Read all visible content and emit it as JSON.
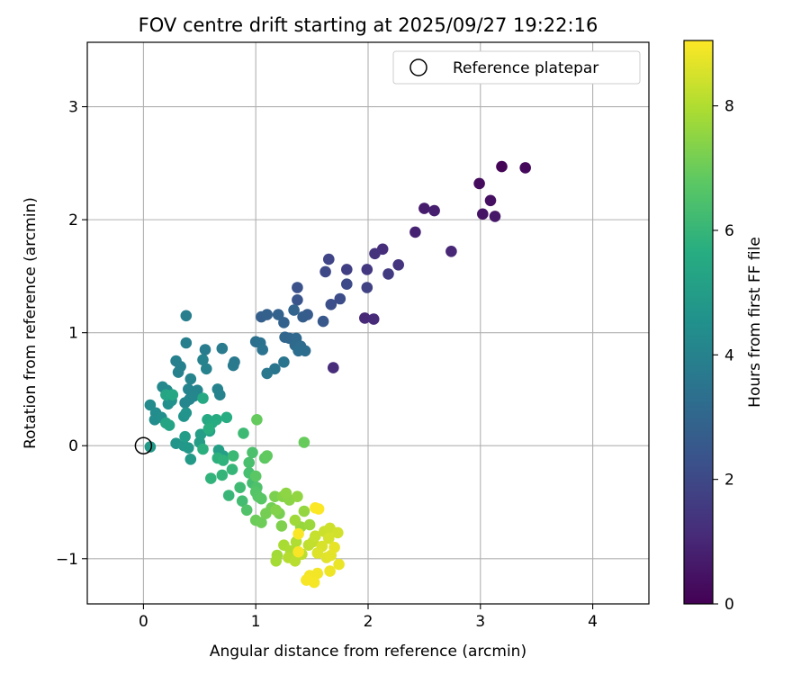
{
  "chart_data": {
    "type": "scatter",
    "title": "FOV centre drift starting at 2025/09/27 19:22:16",
    "xlabel": "Angular distance from reference (arcmin)",
    "ylabel": "Rotation from reference (arcmin)",
    "xlim": [
      -0.5,
      4.5
    ],
    "ylim": [
      -1.4,
      3.57
    ],
    "xticks": [
      0,
      1,
      2,
      3,
      4
    ],
    "xtick_labels": [
      "0",
      "1",
      "2",
      "3",
      "4"
    ],
    "yticks": [
      -1,
      0,
      1,
      2,
      3
    ],
    "ytick_labels": [
      "−1",
      "0",
      "1",
      "2",
      "3"
    ],
    "grid": true,
    "legend": {
      "label": "Reference platepar",
      "location": "top-right"
    },
    "reference_point": {
      "x": 0,
      "y": 0
    },
    "colorbar": {
      "label": "Hours from first FF file",
      "range": [
        0,
        9.05
      ],
      "ticks": [
        0,
        2,
        4,
        6,
        8
      ],
      "tick_labels": [
        "0",
        "2",
        "4",
        "6",
        "8"
      ],
      "colormap": "viridis"
    },
    "series": [
      {
        "name": "FOV centre",
        "points": [
          [
            3.19,
            2.47,
            0.1
          ],
          [
            3.4,
            2.46,
            0.2
          ],
          [
            2.99,
            2.32,
            0.3
          ],
          [
            3.09,
            2.17,
            0.4
          ],
          [
            3.02,
            2.05,
            0.5
          ],
          [
            3.13,
            2.03,
            0.6
          ],
          [
            2.5,
            2.1,
            0.7
          ],
          [
            2.59,
            2.08,
            0.8
          ],
          [
            2.42,
            1.89,
            0.9
          ],
          [
            2.74,
            1.72,
            1.0
          ],
          [
            1.97,
            1.13,
            1.05
          ],
          [
            2.05,
            1.12,
            1.1
          ],
          [
            1.69,
            0.69,
            1.15
          ],
          [
            2.13,
            1.74,
            1.2
          ],
          [
            2.06,
            1.7,
            1.3
          ],
          [
            2.27,
            1.6,
            1.4
          ],
          [
            1.99,
            1.56,
            1.5
          ],
          [
            2.18,
            1.52,
            1.6
          ],
          [
            1.81,
            1.56,
            1.7
          ],
          [
            1.99,
            1.4,
            1.8
          ],
          [
            1.65,
            1.65,
            1.9
          ],
          [
            1.62,
            1.54,
            2.0
          ],
          [
            1.81,
            1.43,
            2.1
          ],
          [
            1.75,
            1.3,
            2.15
          ],
          [
            1.67,
            1.25,
            2.2
          ],
          [
            1.37,
            1.4,
            2.3
          ],
          [
            1.37,
            1.29,
            2.4
          ],
          [
            1.6,
            1.1,
            2.5
          ],
          [
            1.46,
            1.16,
            2.6
          ],
          [
            1.42,
            1.14,
            2.7
          ],
          [
            1.05,
            1.14,
            2.75
          ],
          [
            1.1,
            1.16,
            2.8
          ],
          [
            1.2,
            1.16,
            2.85
          ],
          [
            1.25,
            1.09,
            2.9
          ],
          [
            1.34,
            1.2,
            2.95
          ],
          [
            1.26,
            0.96,
            3.0
          ],
          [
            1.3,
            0.95,
            3.05
          ],
          [
            1.36,
            0.95,
            3.1
          ],
          [
            1.35,
            0.89,
            3.15
          ],
          [
            1.4,
            0.88,
            3.2
          ],
          [
            1.44,
            0.84,
            3.25
          ],
          [
            1.38,
            0.84,
            3.3
          ],
          [
            1.0,
            0.92,
            3.35
          ],
          [
            1.04,
            0.91,
            3.4
          ],
          [
            1.06,
            0.85,
            3.45
          ],
          [
            1.25,
            0.74,
            3.5
          ],
          [
            1.17,
            0.68,
            3.55
          ],
          [
            1.1,
            0.64,
            3.6
          ],
          [
            0.81,
            0.74,
            3.65
          ],
          [
            0.8,
            0.71,
            3.7
          ],
          [
            0.7,
            0.86,
            3.75
          ],
          [
            0.55,
            0.85,
            3.8
          ],
          [
            0.38,
            1.15,
            3.85
          ],
          [
            0.38,
            0.91,
            3.9
          ],
          [
            0.29,
            0.75,
            3.92
          ],
          [
            0.33,
            0.7,
            3.94
          ],
          [
            0.31,
            0.65,
            3.96
          ],
          [
            0.53,
            0.76,
            3.98
          ],
          [
            0.56,
            0.68,
            4.0
          ],
          [
            0.66,
            0.5,
            4.02
          ],
          [
            0.68,
            0.45,
            4.04
          ],
          [
            0.42,
            0.59,
            4.06
          ],
          [
            0.4,
            0.5,
            4.08
          ],
          [
            0.48,
            0.49,
            4.1
          ],
          [
            0.41,
            0.41,
            4.12
          ],
          [
            0.45,
            0.44,
            4.14
          ],
          [
            0.37,
            0.38,
            4.16
          ],
          [
            0.17,
            0.52,
            4.2
          ],
          [
            0.21,
            0.49,
            4.25
          ],
          [
            0.06,
            0.36,
            4.3
          ],
          [
            0.11,
            0.29,
            4.35
          ],
          [
            0.1,
            0.23,
            4.4
          ],
          [
            0.16,
            0.25,
            4.45
          ],
          [
            0.22,
            0.37,
            4.5
          ],
          [
            0.25,
            0.4,
            4.55
          ],
          [
            0.36,
            0.26,
            4.6
          ],
          [
            0.38,
            0.29,
            4.65
          ],
          [
            0.29,
            0.02,
            4.7
          ],
          [
            0.36,
            0.0,
            4.75
          ],
          [
            0.4,
            -0.02,
            4.8
          ],
          [
            0.06,
            -0.01,
            4.85
          ],
          [
            0.42,
            -0.12,
            4.9
          ],
          [
            0.37,
            0.08,
            4.95
          ],
          [
            0.5,
            0.03,
            5.0
          ],
          [
            0.51,
            0.1,
            5.05
          ],
          [
            0.67,
            -0.04,
            5.1
          ],
          [
            0.71,
            -0.09,
            5.15
          ],
          [
            0.59,
            0.13,
            5.2
          ],
          [
            0.23,
            0.18,
            5.25
          ],
          [
            0.2,
            0.2,
            5.3
          ],
          [
            0.2,
            0.45,
            5.35
          ],
          [
            0.26,
            0.45,
            5.4
          ],
          [
            0.53,
            0.42,
            5.45
          ],
          [
            0.57,
            0.23,
            5.5
          ],
          [
            0.61,
            0.2,
            5.55
          ],
          [
            0.65,
            0.23,
            5.6
          ],
          [
            0.74,
            0.25,
            5.65
          ],
          [
            0.58,
            0.15,
            5.7
          ],
          [
            0.53,
            -0.03,
            5.75
          ],
          [
            0.66,
            -0.11,
            5.8
          ],
          [
            0.71,
            -0.13,
            5.85
          ],
          [
            0.6,
            -0.29,
            5.9
          ],
          [
            0.7,
            -0.26,
            5.95
          ],
          [
            0.79,
            -0.21,
            6.0
          ],
          [
            0.76,
            -0.44,
            6.05
          ],
          [
            0.8,
            -0.09,
            6.1
          ],
          [
            0.89,
            0.11,
            6.15
          ],
          [
            0.86,
            -0.37,
            6.2
          ],
          [
            0.88,
            -0.49,
            6.25
          ],
          [
            0.97,
            -0.33,
            6.3
          ],
          [
            0.94,
            -0.24,
            6.35
          ],
          [
            0.94,
            -0.15,
            6.4
          ],
          [
            0.97,
            -0.06,
            6.45
          ],
          [
            1.01,
            -0.37,
            6.5
          ],
          [
            0.92,
            -0.57,
            6.55
          ],
          [
            1.0,
            -0.41,
            6.6
          ],
          [
            1.02,
            -0.45,
            6.65
          ],
          [
            1.05,
            -0.47,
            6.7
          ],
          [
            1.0,
            -0.27,
            6.75
          ],
          [
            1.08,
            -0.11,
            6.8
          ],
          [
            1.1,
            -0.09,
            6.85
          ],
          [
            1.01,
            0.23,
            6.9
          ],
          [
            1.43,
            0.03,
            6.95
          ],
          [
            1.0,
            -0.66,
            7.0
          ],
          [
            1.05,
            -0.68,
            7.05
          ],
          [
            1.14,
            -0.55,
            7.1
          ],
          [
            1.09,
            -0.6,
            7.15
          ],
          [
            1.21,
            -0.6,
            7.2
          ],
          [
            1.17,
            -0.45,
            7.25
          ],
          [
            1.23,
            -0.71,
            7.3
          ],
          [
            1.18,
            -0.57,
            7.35
          ],
          [
            1.24,
            -0.45,
            7.4
          ],
          [
            1.3,
            -0.48,
            7.45
          ],
          [
            1.27,
            -0.42,
            7.5
          ],
          [
            1.37,
            -0.45,
            7.55
          ],
          [
            1.43,
            -0.58,
            7.6
          ],
          [
            1.4,
            -0.72,
            7.65
          ],
          [
            1.48,
            -0.7,
            7.7
          ],
          [
            1.35,
            -0.66,
            7.75
          ],
          [
            1.19,
            -0.97,
            7.8
          ],
          [
            1.18,
            -1.02,
            7.85
          ],
          [
            1.25,
            -0.88,
            7.9
          ],
          [
            1.31,
            -0.93,
            7.95
          ],
          [
            1.36,
            -0.85,
            8.0
          ],
          [
            1.29,
            -0.99,
            8.05
          ],
          [
            1.35,
            -1.02,
            8.1
          ],
          [
            1.41,
            -0.96,
            8.15
          ],
          [
            1.47,
            -0.88,
            8.2
          ],
          [
            1.51,
            -0.85,
            8.25
          ],
          [
            1.53,
            -0.8,
            8.3
          ],
          [
            1.61,
            -0.76,
            8.35
          ],
          [
            1.66,
            -0.73,
            8.4
          ],
          [
            1.73,
            -0.77,
            8.45
          ],
          [
            1.65,
            -0.82,
            8.5
          ],
          [
            1.59,
            -0.89,
            8.55
          ],
          [
            1.55,
            -0.95,
            8.6
          ],
          [
            1.63,
            -0.99,
            8.65
          ],
          [
            1.67,
            -0.97,
            8.7
          ],
          [
            1.7,
            -0.9,
            8.75
          ],
          [
            1.74,
            -1.05,
            8.8
          ],
          [
            1.66,
            -1.11,
            8.85
          ],
          [
            1.55,
            -1.13,
            8.9
          ],
          [
            1.48,
            -1.15,
            8.92
          ],
          [
            1.52,
            -1.21,
            8.94
          ],
          [
            1.45,
            -1.19,
            8.96
          ],
          [
            1.38,
            -0.94,
            8.98
          ],
          [
            1.38,
            -0.78,
            9.0
          ],
          [
            1.56,
            -0.56,
            9.02
          ],
          [
            1.53,
            -0.55,
            9.04
          ]
        ]
      }
    ]
  }
}
